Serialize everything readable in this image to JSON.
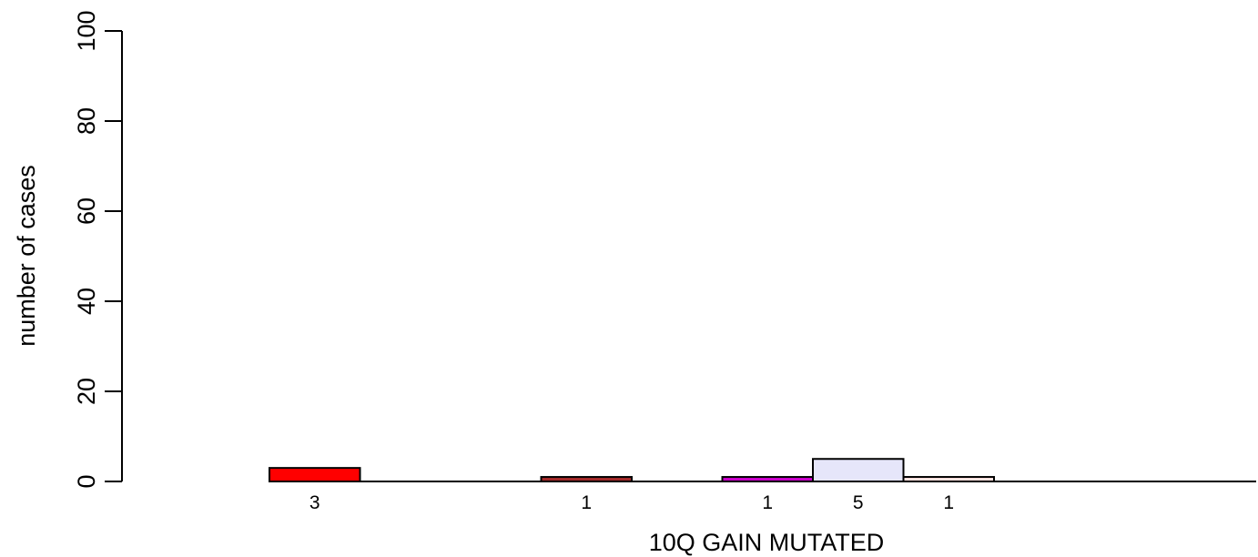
{
  "chart_data": {
    "type": "bar",
    "title": "",
    "xlabel": "10Q GAIN MUTATED",
    "ylabel": "number of cases",
    "ylim": [
      0,
      100
    ],
    "yticks": [
      0,
      20,
      40,
      60,
      80,
      100
    ],
    "ytick_labels": [
      "0",
      "20",
      "40",
      "60",
      "80",
      "100"
    ],
    "grid": false,
    "legend": "none",
    "slots": 12,
    "bars": [
      {
        "slot": 1,
        "value": 3,
        "label": "3",
        "color": "#ff0000"
      },
      {
        "slot": 2,
        "value": 0,
        "label": "",
        "color": "#ffffff"
      },
      {
        "slot": 3,
        "value": 0,
        "label": "",
        "color": "#ffffff"
      },
      {
        "slot": 4,
        "value": 1,
        "label": "1",
        "color": "#a52a2a"
      },
      {
        "slot": 5,
        "value": 0,
        "label": "",
        "color": "#ffffff"
      },
      {
        "slot": 6,
        "value": 1,
        "label": "1",
        "color": "#cc00cc"
      },
      {
        "slot": 7,
        "value": 5,
        "label": "5",
        "color": "#e6e6fa"
      },
      {
        "slot": 8,
        "value": 1,
        "label": "1",
        "color": "#ffe4e1"
      },
      {
        "slot": 9,
        "value": 0,
        "label": "",
        "color": "#ffffff"
      },
      {
        "slot": 10,
        "value": 0,
        "label": "",
        "color": "#ffffff"
      },
      {
        "slot": 11,
        "value": 0,
        "label": "",
        "color": "#ffffff"
      }
    ]
  }
}
